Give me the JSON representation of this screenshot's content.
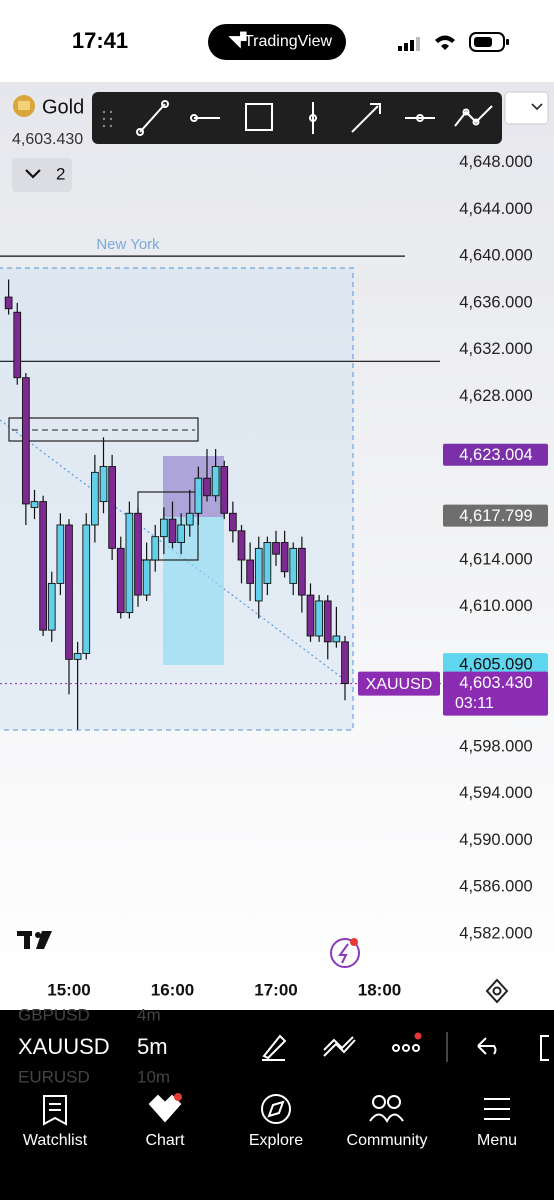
{
  "status_bar": {
    "time": "17:41",
    "app": "TradingView"
  },
  "header": {
    "symbol": "Gold",
    "price": "4,603.430",
    "layouts": "2"
  },
  "chart_data": {
    "type": "candlestick",
    "session_label": "New York",
    "categories": [
      null,
      null,
      null,
      null,
      null,
      null,
      null,
      "15:00",
      null,
      null,
      null,
      null,
      null,
      null,
      null,
      null,
      null,
      null,
      null,
      "16:00",
      null,
      null,
      null,
      null,
      null,
      null,
      null,
      null,
      null,
      null,
      null,
      "17:00",
      null,
      null,
      null,
      null,
      null,
      null,
      null,
      null,
      null,
      null,
      null,
      "18:00"
    ],
    "open": [
      4636.5,
      4635.2,
      4629.6,
      4618.5,
      4619,
      4608,
      4612,
      4617,
      4605.5,
      4606,
      4617,
      4619,
      4622,
      4615,
      4609.5,
      4618,
      4611,
      4614,
      4616,
      4617.5,
      4615.5,
      4617,
      4618,
      4621,
      4619.5,
      4622,
      4618,
      4616.5,
      4614,
      4610.5,
      4612,
      4615.5,
      4615.5,
      4612,
      4615,
      4611,
      4607.5,
      4610.5,
      4607,
      4607,
      null,
      null,
      null,
      null
    ],
    "high": [
      4638,
      4636,
      4630,
      4620,
      4619.5,
      4613,
      4618,
      4617.5,
      4607,
      4618,
      4623,
      4624.5,
      4623,
      4616,
      4619,
      4618.5,
      4615.5,
      4617,
      4618.5,
      4619,
      4618,
      4620,
      4622,
      4623.5,
      4623.5,
      4622.5,
      4619,
      4617,
      4615.5,
      4616,
      4616,
      4616.5,
      4616.5,
      4615.5,
      4616,
      4612,
      4611,
      4611,
      4610,
      4607.5,
      null,
      null,
      null,
      null
    ],
    "low": [
      4635,
      4629,
      4617,
      4617.5,
      4607.5,
      4607,
      4611,
      4602.5,
      4599.5,
      4605.5,
      4615.5,
      4618,
      4614,
      4609,
      4609,
      4610,
      4610.5,
      4613,
      4614.5,
      4615,
      4614.5,
      4616,
      4617,
      4619,
      4619,
      4617.5,
      4615.5,
      4612,
      4610.5,
      4609,
      4611,
      4613.5,
      4612.5,
      4611,
      4609.5,
      4607,
      4607,
      4605.5,
      4606.5,
      4602,
      null,
      null,
      null,
      null
    ],
    "close": [
      4635.5,
      4629.6,
      4618.8,
      4619,
      4608,
      4612,
      4617,
      4605.5,
      4606,
      4617,
      4621.5,
      4622,
      4615,
      4609.5,
      4618,
      4611,
      4614,
      4616,
      4617.5,
      4615.5,
      4617,
      4618,
      4621,
      4619.5,
      4622,
      4618,
      4616.5,
      4614,
      4612,
      4615,
      4615.5,
      4614.5,
      4613,
      4615,
      4611,
      4607.5,
      4610.5,
      4607,
      4607.5,
      4603.43,
      null,
      null,
      null,
      null
    ],
    "up_color": "#63cfe8",
    "down_color": "#7d2a92",
    "ylim": [
      4575.5,
      4654.9
    ],
    "yticks": [
      {
        "value": 4648,
        "label": "4,648.000"
      },
      {
        "value": 4644,
        "label": "4,644.000"
      },
      {
        "value": 4640,
        "label": "4,640.000"
      },
      {
        "value": 4636,
        "label": "4,636.000"
      },
      {
        "value": 4632,
        "label": "4,632.000"
      },
      {
        "value": 4628,
        "label": "4,628.000"
      },
      {
        "value": 4614,
        "label": "4,614.000"
      },
      {
        "value": 4610,
        "label": "4,610.000"
      },
      {
        "value": 4598,
        "label": "4,598.000"
      },
      {
        "value": 4594,
        "label": "4,594.000"
      },
      {
        "value": 4590,
        "label": "4,590.000"
      },
      {
        "value": 4586,
        "label": "4,586.000"
      },
      {
        "value": 4582,
        "label": "4,582.000"
      }
    ],
    "hlines": [
      {
        "value": 4640,
        "end": "left"
      },
      {
        "value": 4631,
        "end": "axis"
      }
    ],
    "price_labels": [
      {
        "value": 4623.004,
        "label": "4,623.004",
        "color": "#7b2fa8"
      },
      {
        "value": 4617.799,
        "label": "4,617.799",
        "color": "#6e6e6e"
      },
      {
        "value": 4605.09,
        "label": "4,605.090",
        "color": "#5fd6ef"
      }
    ],
    "last_price": {
      "value": 4603.43,
      "label": "4,603.430",
      "symbol": "XAUUSD",
      "countdown": "03:11",
      "color": "#8b2cb3"
    }
  },
  "symbol_bar": {
    "symbol": "XAUUSD",
    "interval": "5m",
    "prev_symbol": "GBPUSD",
    "prev_interval": "4m",
    "next_symbol": "EURUSD",
    "next_interval": "10m"
  },
  "tabs": [
    "Watchlist",
    "Chart",
    "Explore",
    "Community",
    "Menu"
  ]
}
